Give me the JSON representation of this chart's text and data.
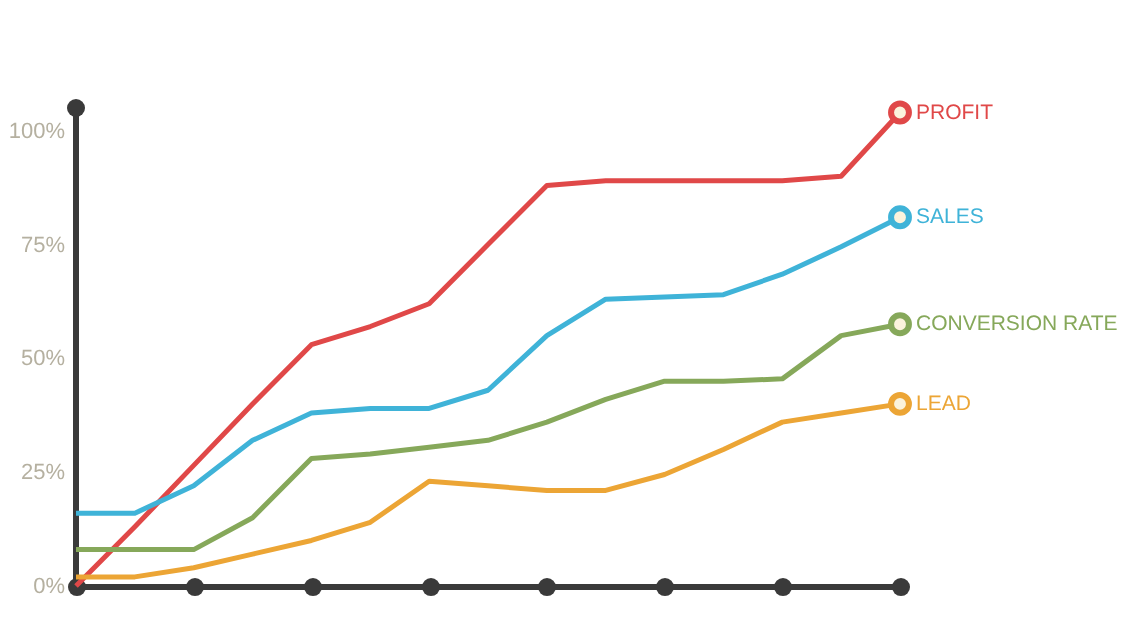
{
  "chart_data": {
    "type": "line",
    "categories": [
      null,
      null,
      null,
      null,
      null,
      null,
      null,
      null,
      null,
      null,
      null,
      null,
      null,
      null,
      null
    ],
    "ylim": [
      0,
      105
    ],
    "yticks": [
      {
        "value": 0,
        "label": "0%"
      },
      {
        "value": 25,
        "label": "25%"
      },
      {
        "value": 50,
        "label": "50%"
      },
      {
        "value": 75,
        "label": "75%"
      },
      {
        "value": 100,
        "label": "100%"
      }
    ],
    "grid": false,
    "legend": "right",
    "series": [
      {
        "name": "PROFIT",
        "color": "#e04848",
        "values": [
          0,
          13,
          26.5,
          40,
          53,
          57,
          62,
          75,
          88,
          89,
          89,
          89,
          89,
          90,
          104
        ]
      },
      {
        "name": "SALES",
        "color": "#3fb3d8",
        "values": [
          16,
          16,
          22,
          32,
          38,
          39,
          39,
          43,
          55,
          63,
          63.5,
          64,
          68.5,
          74.5,
          81
        ]
      },
      {
        "name": "CONVERSION RATE",
        "color": "#86a85a",
        "values": [
          8,
          8,
          8,
          15,
          28,
          29,
          30.5,
          32,
          36,
          41,
          45,
          45,
          45.5,
          55,
          57.5
        ]
      },
      {
        "name": "LEAD",
        "color": "#eca535",
        "values": [
          2,
          2,
          4,
          7,
          10,
          14,
          23,
          22,
          21,
          21,
          24.5,
          30,
          36,
          38,
          40
        ]
      }
    ]
  }
}
